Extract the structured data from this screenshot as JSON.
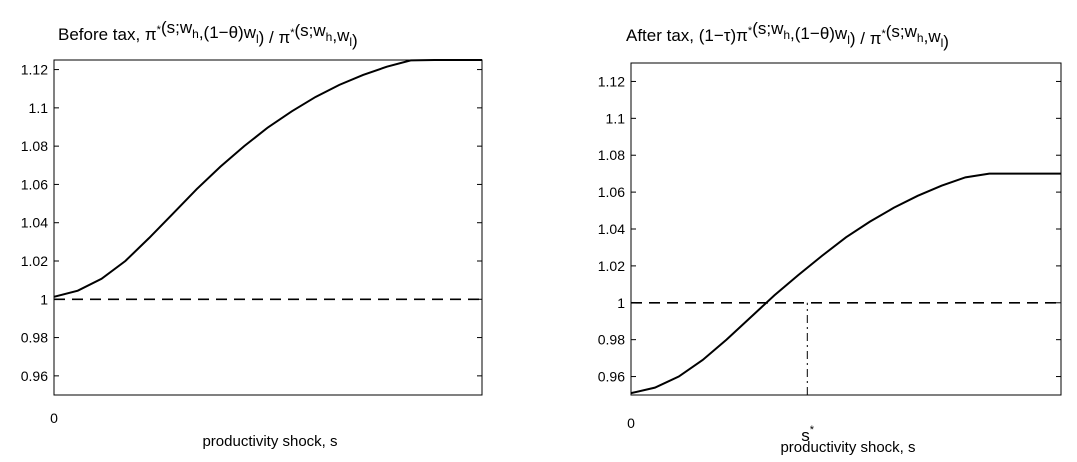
{
  "chart_data": [
    {
      "type": "line",
      "title_segments": [
        {
          "t": "Before tax,  π"
        },
        {
          "t": "*",
          "s": "sup"
        },
        {
          "t": "(s;w"
        },
        {
          "t": "h",
          "s": "sub"
        },
        {
          "t": ",(1−θ)w"
        },
        {
          "t": "l",
          "s": "sub"
        },
        {
          "t": ")  /  π"
        },
        {
          "t": "*",
          "s": "sup"
        },
        {
          "t": "(s;w"
        },
        {
          "t": "h",
          "s": "sub"
        },
        {
          "t": ",w"
        },
        {
          "t": "l",
          "s": "sub"
        },
        {
          "t": ")"
        }
      ],
      "xlabel": "productivity shock, s",
      "x_tick_labels": [
        "0"
      ],
      "xlim": [
        0,
        1
      ],
      "ylim": [
        0.95,
        1.125
      ],
      "yticks": [
        0.96,
        0.98,
        1,
        1.02,
        1.04,
        1.06,
        1.08,
        1.1,
        1.12
      ],
      "ytick_labels": [
        "0.96",
        "0.98",
        "1",
        "1.02",
        "1.04",
        "1.06",
        "1.08",
        "1.1",
        "1.12"
      ],
      "series": [
        {
          "style": "solid",
          "x": [
            0,
            0.0556,
            0.1111,
            0.1667,
            0.2222,
            0.2778,
            0.3333,
            0.3889,
            0.4444,
            0.5,
            0.5556,
            0.6111,
            0.6667,
            0.7222,
            0.7778,
            0.8333,
            0.8889,
            0.9444,
            1
          ],
          "y": [
            1.0013,
            1.0045,
            1.0107,
            1.02,
            1.032,
            1.0447,
            1.0575,
            1.0693,
            1.08,
            1.0898,
            1.0982,
            1.1057,
            1.112,
            1.1172,
            1.1215,
            1.1248,
            1.125,
            1.125,
            1.125
          ]
        },
        {
          "style": "dashed",
          "x": [
            0,
            1
          ],
          "y": [
            1,
            1
          ]
        }
      ]
    },
    {
      "type": "line",
      "title_segments": [
        {
          "t": "After tax,   (1−τ)π"
        },
        {
          "t": "*",
          "s": "sup"
        },
        {
          "t": "(s;w"
        },
        {
          "t": "h",
          "s": "sub"
        },
        {
          "t": ",(1−θ)w"
        },
        {
          "t": "l",
          "s": "sub"
        },
        {
          "t": ") / π"
        },
        {
          "t": "*",
          "s": "sup"
        },
        {
          "t": "(s;w"
        },
        {
          "t": "h",
          "s": "sub"
        },
        {
          "t": ",w"
        },
        {
          "t": "l",
          "s": "sub"
        },
        {
          "t": ")"
        }
      ],
      "xlabel": "productivity shock, s",
      "x_tick_labels": [
        "0"
      ],
      "marker_label": "s",
      "marker_sup": "*",
      "marker_x": 0.41,
      "xlim": [
        0,
        1
      ],
      "ylim": [
        0.95,
        1.13
      ],
      "yticks": [
        0.96,
        0.98,
        1,
        1.02,
        1.04,
        1.06,
        1.08,
        1.1,
        1.12
      ],
      "ytick_labels": [
        "0.96",
        "0.98",
        "1",
        "1.02",
        "1.04",
        "1.06",
        "1.08",
        "1.1",
        "1.12"
      ],
      "series": [
        {
          "style": "solid",
          "x": [
            0,
            0.0556,
            0.1111,
            0.1667,
            0.2222,
            0.2778,
            0.3333,
            0.3889,
            0.4444,
            0.5,
            0.5556,
            0.6111,
            0.6667,
            0.7222,
            0.7778,
            0.8333,
            0.8889,
            0.9444,
            1
          ],
          "y": [
            0.951,
            0.954,
            0.96,
            0.969,
            0.98,
            0.992,
            1.004,
            1.015,
            1.0255,
            1.0355,
            1.044,
            1.0515,
            1.058,
            1.0635,
            1.068,
            1.07,
            1.07,
            1.07,
            1.07
          ]
        },
        {
          "style": "dashed",
          "x": [
            0,
            1
          ],
          "y": [
            1,
            1
          ]
        },
        {
          "style": "dashdot",
          "x": [
            0.41,
            0.41
          ],
          "y": [
            0.95,
            1
          ]
        }
      ]
    }
  ]
}
